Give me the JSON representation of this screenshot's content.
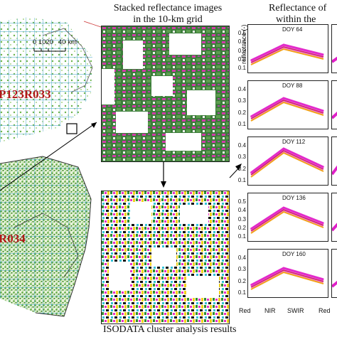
{
  "headings": {
    "stacked_line1": "Stacked reflectance images",
    "stacked_line2": "in the 10-km grid",
    "reflectance_line1": "Reflectance of",
    "reflectance_line2": "within the",
    "isodata": "ISODATA cluster analysis results"
  },
  "map": {
    "tile_top": "P123R033",
    "tile_bottom": "R034",
    "scale_values": "0 1020",
    "scale_unit": "40 km"
  },
  "chart": {
    "ylabel": "reflectance (-)",
    "yticks": [
      "0.5",
      "0.4",
      "0.3",
      "0.2",
      "0.1"
    ],
    "xticks": [
      "Red",
      "NIR",
      "SWIR",
      "Red"
    ],
    "panels": [
      {
        "doy": "DOY 64",
        "yticks": [
          "0.5",
          "0.4",
          "0.3",
          "0.2",
          "0.1"
        ]
      },
      {
        "doy": "DOY 88",
        "yticks": [
          "0.4",
          "0.3",
          "0.2",
          "0.1"
        ]
      },
      {
        "doy": "DOY 112",
        "yticks": [
          "0.4",
          "0.3",
          "0.2",
          "0.1"
        ]
      },
      {
        "doy": "DOY 136",
        "yticks": [
          "0.5",
          "0.4",
          "0.3",
          "0.2",
          "0.1"
        ]
      },
      {
        "doy": "DOY 160",
        "yticks": [
          "0.4",
          "0.3",
          "0.2",
          "0.1"
        ]
      }
    ]
  },
  "colors": {
    "tile_label": "#b01818",
    "grid_line": "#3a9fc0",
    "vegetation": "#4f9a2f",
    "magenta": "#e020c8",
    "orange": "#f2a21a"
  }
}
